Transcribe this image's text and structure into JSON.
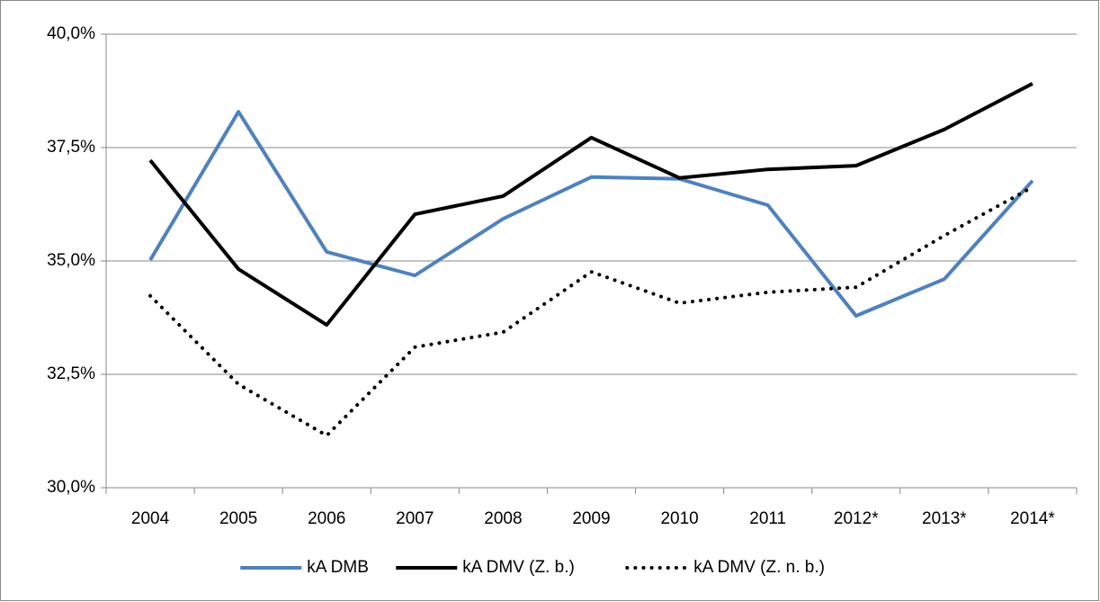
{
  "chart_data": {
    "type": "line",
    "categories": [
      "2004",
      "2005",
      "2006",
      "2007",
      "2008",
      "2009",
      "2010",
      "2011",
      "2012*",
      "2013*",
      "2014*"
    ],
    "series": [
      {
        "name": "kA DMB",
        "color": "#4f81bd",
        "style": "solid",
        "values": [
          35.02,
          38.29,
          35.2,
          34.68,
          35.93,
          36.85,
          36.81,
          36.23,
          33.79,
          34.6,
          36.77
        ]
      },
      {
        "name": "kA DMV (Z. b.)",
        "color": "#000000",
        "style": "solid",
        "values": [
          37.22,
          34.82,
          33.59,
          36.03,
          36.43,
          37.72,
          36.83,
          37.02,
          37.1,
          37.9,
          38.91
        ]
      },
      {
        "name": "kA DMV (Z. n. b.)",
        "color": "#000000",
        "style": "dotted",
        "values": [
          34.23,
          32.28,
          31.15,
          33.1,
          33.43,
          34.76,
          34.07,
          34.31,
          34.42,
          35.56,
          36.63
        ]
      }
    ],
    "ylim": [
      30,
      40
    ],
    "yticks": [
      {
        "value": 30,
        "label": "30,0%"
      },
      {
        "value": 32.5,
        "label": "32,5%"
      },
      {
        "value": 35,
        "label": "35,0%"
      },
      {
        "value": 37.5,
        "label": "37,5%"
      },
      {
        "value": 40,
        "label": "40,0%"
      }
    ],
    "grid": true,
    "legend": "bottom"
  }
}
